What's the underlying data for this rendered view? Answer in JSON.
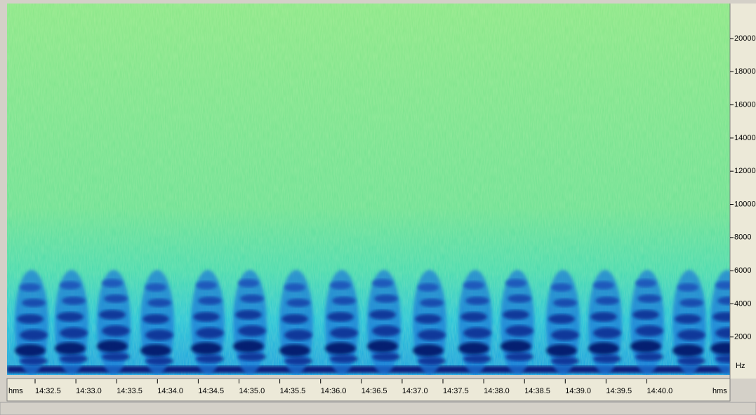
{
  "frequency_axis": {
    "unit": "Hz",
    "labels": [
      "20000",
      "18000",
      "16000",
      "14000",
      "12000",
      "10000",
      "8000",
      "6000",
      "4000",
      "2000"
    ]
  },
  "time_axis": {
    "unit": "hms",
    "labels": [
      "14:32.5",
      "14:33.0",
      "14:33.5",
      "14:34.0",
      "14:34.5",
      "14:35.0",
      "14:35.5",
      "14:36.0",
      "14:36.5",
      "14:37.0",
      "14:37.5",
      "14:38.0",
      "14:38.5",
      "14:39.0",
      "14:39.5",
      "14:40.0"
    ]
  }
}
